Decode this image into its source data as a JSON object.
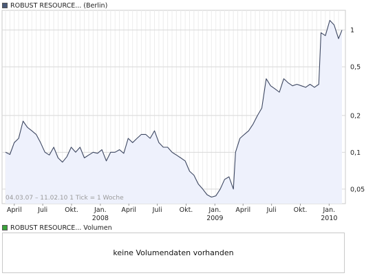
{
  "legend": {
    "price_label": "ROBUST RESOURCE... (Berlin)",
    "price_color": "#4a5a78",
    "volume_label": "ROBUST RESOURCE... Volumen",
    "volume_color": "#3aa33a"
  },
  "range_info": "04.03.07 – 11.02.10   1 Tick = 1 Woche",
  "volume_message": "keine Volumendaten vorhanden",
  "chart_data": {
    "type": "area",
    "yscale": "log",
    "ylim": [
      0.038,
      1.45
    ],
    "yticks": [
      {
        "value": 1,
        "label": "1"
      },
      {
        "value": 0.5,
        "label": "0,5"
      },
      {
        "value": 0.2,
        "label": "0,2"
      },
      {
        "value": 0.1,
        "label": "0,1"
      },
      {
        "value": 0.05,
        "label": "0,05"
      }
    ],
    "xticks": [
      {
        "label": "April",
        "year": ""
      },
      {
        "label": "Juli",
        "year": ""
      },
      {
        "label": "Okt.",
        "year": ""
      },
      {
        "label": "Jan.",
        "year": "2008"
      },
      {
        "label": "April",
        "year": ""
      },
      {
        "label": "Juli",
        "year": ""
      },
      {
        "label": "Okt.",
        "year": ""
      },
      {
        "label": "Jan.",
        "year": "2009"
      },
      {
        "label": "April",
        "year": ""
      },
      {
        "label": "Juli",
        "year": ""
      },
      {
        "label": "Okt.",
        "year": ""
      },
      {
        "label": "Jan.",
        "year": "2010"
      }
    ],
    "grid": true,
    "line_color": "#3c4660",
    "fill_color": "#eef1fc",
    "series": [
      {
        "name": "ROBUST RESOURCE... (Berlin)",
        "x": [
          "2007-03-04",
          "2007-03-18",
          "2007-04-01",
          "2007-04-15",
          "2007-04-29",
          "2007-05-13",
          "2007-05-27",
          "2007-06-10",
          "2007-06-24",
          "2007-07-08",
          "2007-07-22",
          "2007-08-05",
          "2007-08-19",
          "2007-09-02",
          "2007-09-16",
          "2007-09-30",
          "2007-10-14",
          "2007-10-28",
          "2007-11-11",
          "2007-11-25",
          "2007-12-09",
          "2007-12-23",
          "2008-01-06",
          "2008-01-20",
          "2008-02-03",
          "2008-02-17",
          "2008-03-02",
          "2008-03-16",
          "2008-03-30",
          "2008-04-13",
          "2008-04-27",
          "2008-05-11",
          "2008-05-25",
          "2008-06-08",
          "2008-06-22",
          "2008-07-06",
          "2008-07-20",
          "2008-08-03",
          "2008-08-17",
          "2008-08-31",
          "2008-09-14",
          "2008-09-28",
          "2008-10-12",
          "2008-10-26",
          "2008-11-09",
          "2008-11-23",
          "2008-12-07",
          "2008-12-21",
          "2009-01-04",
          "2009-01-18",
          "2009-02-01",
          "2009-02-15",
          "2009-03-01",
          "2009-03-08",
          "2009-03-22",
          "2009-04-05",
          "2009-04-19",
          "2009-05-03",
          "2009-05-17",
          "2009-05-31",
          "2009-06-14",
          "2009-06-28",
          "2009-07-12",
          "2009-07-26",
          "2009-08-09",
          "2009-08-23",
          "2009-09-06",
          "2009-09-20",
          "2009-10-04",
          "2009-10-18",
          "2009-11-01",
          "2009-11-15",
          "2009-11-29",
          "2009-12-06",
          "2009-12-20",
          "2010-01-03",
          "2010-01-17",
          "2010-01-31",
          "2010-02-11"
        ],
        "y": [
          0.1,
          0.096,
          0.12,
          0.13,
          0.18,
          0.16,
          0.15,
          0.14,
          0.12,
          0.1,
          0.095,
          0.11,
          0.09,
          0.083,
          0.092,
          0.11,
          0.1,
          0.11,
          0.09,
          0.095,
          0.1,
          0.098,
          0.105,
          0.085,
          0.1,
          0.1,
          0.105,
          0.098,
          0.13,
          0.12,
          0.13,
          0.14,
          0.14,
          0.13,
          0.15,
          0.12,
          0.11,
          0.11,
          0.1,
          0.095,
          0.09,
          0.085,
          0.07,
          0.065,
          0.055,
          0.05,
          0.045,
          0.043,
          0.044,
          0.05,
          0.06,
          0.063,
          0.05,
          0.1,
          0.13,
          0.14,
          0.15,
          0.17,
          0.2,
          0.23,
          0.4,
          0.35,
          0.33,
          0.31,
          0.4,
          0.37,
          0.35,
          0.36,
          0.35,
          0.34,
          0.36,
          0.34,
          0.36,
          0.95,
          0.9,
          1.2,
          1.1,
          0.85,
          1.0
        ]
      }
    ]
  }
}
